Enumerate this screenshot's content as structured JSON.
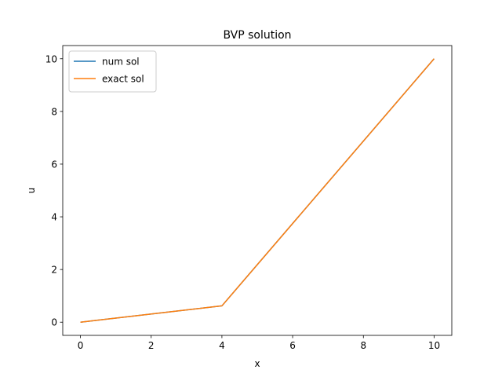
{
  "chart_data": {
    "type": "line",
    "title": "BVP solution",
    "xlabel": "x",
    "ylabel": "u",
    "xlim": [
      -0.5,
      10.5
    ],
    "ylim": [
      -0.5,
      10.5
    ],
    "xticks": [
      0,
      2,
      4,
      6,
      8,
      10
    ],
    "yticks": [
      0,
      2,
      4,
      6,
      8,
      10
    ],
    "grid": false,
    "legend": "top-left",
    "series": [
      {
        "name": "num sol",
        "color": "#1f77b4",
        "x": [
          0,
          4,
          10
        ],
        "y": [
          0,
          0.62,
          10
        ]
      },
      {
        "name": "exact sol",
        "color": "#ff7f0e",
        "x": [
          0,
          4,
          10
        ],
        "y": [
          0,
          0.62,
          10
        ]
      }
    ]
  }
}
